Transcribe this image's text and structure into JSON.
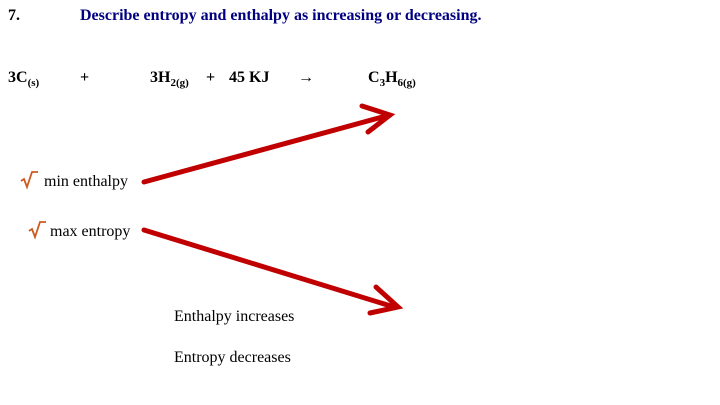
{
  "question": {
    "number": "7.",
    "text": "Describe entropy and enthalpy as increasing or decreasing."
  },
  "equation": {
    "reactant1": {
      "coef": "3C",
      "state": "(s)"
    },
    "plus1": "+",
    "reactant2": {
      "coef": "3H",
      "sub": "2(g)"
    },
    "plus2": "+",
    "energy": "45 KJ",
    "arrow": "→",
    "product": {
      "c": "C",
      "c_sub": "3",
      "h": "H",
      "h_sub": "6(g)"
    }
  },
  "rules": {
    "min_enthalpy": "min enthalpy",
    "max_entropy": "max entropy"
  },
  "answers": {
    "enthalpy": "Enthalpy increases",
    "entropy": "Entropy decreases"
  },
  "colors": {
    "title": "#000080",
    "check": "#cc5a1e",
    "arrow": "#c00000"
  },
  "icons": {
    "check": "check-mark-icon",
    "arrow": "red-arrow-icon"
  }
}
